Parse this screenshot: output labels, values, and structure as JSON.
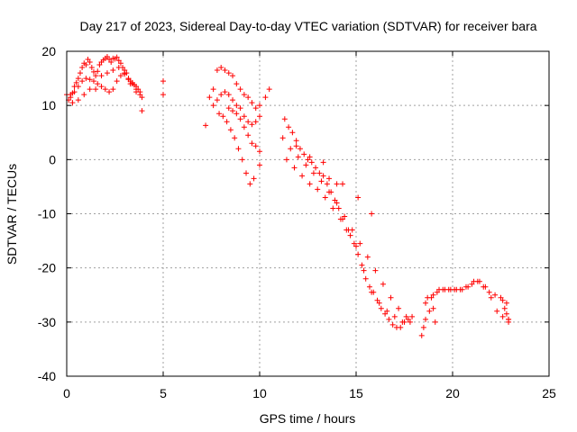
{
  "chart_data": {
    "type": "scatter",
    "title": "Day 217 of 2023, Sidereal Day-to-day VTEC variation (SDTVAR) for receiver bara",
    "xlabel": "GPS time / hours",
    "ylabel": "SDTVAR / TECUs",
    "xlim": [
      0,
      25
    ],
    "ylim": [
      -40,
      20
    ],
    "x_ticks": [
      0,
      5,
      10,
      15,
      20,
      25
    ],
    "y_ticks": [
      -40,
      -30,
      -20,
      -10,
      0,
      10,
      20
    ],
    "x_tick_labels": [
      "0",
      "5",
      "10",
      "15",
      "20",
      "25"
    ],
    "y_tick_labels": [
      "-40",
      "-30",
      "-20",
      "-10",
      "0",
      "10",
      "20"
    ],
    "grid": true,
    "marker": "plus",
    "color": "#ff0000",
    "series": [
      {
        "name": "SDTVAR",
        "x": [
          0.0,
          0.1,
          0.2,
          0.3,
          0.4,
          0.5,
          0.6,
          0.7,
          0.8,
          0.9,
          1.0,
          1.1,
          1.2,
          1.3,
          1.4,
          1.5,
          1.6,
          1.7,
          1.8,
          1.9,
          2.0,
          2.1,
          2.2,
          2.3,
          2.4,
          2.5,
          2.6,
          2.7,
          2.8,
          2.9,
          3.0,
          3.1,
          3.2,
          3.3,
          3.4,
          3.5,
          3.6,
          3.7,
          3.8,
          3.9,
          0.2,
          0.4,
          0.6,
          0.8,
          1.0,
          1.2,
          1.4,
          1.6,
          1.8,
          2.0,
          2.2,
          2.4,
          2.6,
          2.8,
          3.0,
          3.2,
          3.4,
          3.6,
          3.8,
          0.3,
          0.6,
          0.9,
          1.2,
          1.5,
          1.8,
          2.1,
          2.4,
          2.7,
          3.0,
          3.3,
          3.6,
          3.9,
          5.0,
          5.0,
          7.2,
          7.4,
          7.6,
          7.8,
          8.0,
          8.2,
          8.4,
          8.6,
          8.8,
          9.0,
          9.2,
          9.4,
          9.6,
          9.8,
          10.0,
          7.6,
          7.8,
          8.0,
          8.2,
          8.4,
          8.6,
          8.8,
          9.0,
          9.2,
          9.4,
          9.6,
          9.8,
          10.0,
          8.4,
          8.6,
          8.8,
          9.0,
          9.2,
          9.4,
          9.6,
          9.8,
          10.0,
          7.9,
          8.1,
          8.3,
          8.5,
          8.7,
          8.9,
          9.1,
          9.3,
          9.5,
          9.7,
          10.0,
          10.3,
          10.5,
          11.3,
          11.5,
          11.7,
          11.9,
          12.1,
          12.3,
          12.5,
          12.7,
          12.9,
          13.1,
          13.3,
          13.5,
          13.7,
          13.9,
          14.1,
          14.3,
          14.5,
          14.7,
          14.9,
          15.1,
          15.3,
          15.5,
          15.7,
          15.9,
          16.1,
          16.3,
          16.5,
          16.7,
          16.9,
          17.1,
          17.3,
          17.5,
          17.7,
          17.9,
          11.4,
          11.8,
          12.2,
          12.6,
          13.0,
          13.4,
          13.8,
          14.2,
          14.6,
          15.0,
          15.4,
          15.8,
          16.2,
          16.6,
          17.0,
          17.4,
          17.8,
          11.6,
          12.0,
          12.4,
          12.8,
          13.2,
          13.6,
          14.0,
          14.4,
          14.8,
          15.2,
          15.6,
          16.0,
          16.4,
          16.8,
          17.2,
          17.6,
          11.2,
          11.9,
          12.6,
          13.3,
          13.6,
          14.0,
          14.3,
          15.1,
          15.8,
          18.4,
          18.5,
          18.6,
          18.8,
          19.0,
          19.1,
          18.6,
          18.9,
          19.2,
          19.5,
          19.8,
          20.1,
          20.4,
          20.7,
          21.0,
          21.3,
          21.6,
          21.9,
          22.2,
          22.5,
          22.8,
          18.7,
          19.0,
          19.3,
          19.6,
          19.9,
          20.2,
          20.5,
          20.8,
          21.1,
          21.4,
          21.7,
          22.0,
          22.3,
          22.6,
          22.9,
          22.6,
          22.7,
          22.8,
          22.9,
          22.9
        ],
        "y": [
          12.0,
          11.0,
          11.5,
          12.3,
          13.5,
          14.2,
          15.0,
          16.0,
          17.0,
          17.8,
          17.5,
          18.5,
          18.0,
          17.0,
          16.2,
          15.5,
          16.3,
          17.5,
          18.0,
          18.4,
          18.7,
          19.0,
          18.5,
          18.0,
          18.7,
          18.6,
          18.9,
          18.3,
          17.8,
          17.0,
          16.5,
          16.0,
          15.0,
          14.5,
          14.0,
          13.8,
          13.5,
          13.0,
          12.5,
          11.5,
          12.0,
          12.5,
          13.5,
          14.5,
          15.0,
          14.8,
          14.5,
          14.0,
          13.5,
          13.0,
          12.5,
          13.0,
          14.5,
          15.5,
          15.8,
          14.8,
          14.2,
          13.0,
          12.0,
          10.5,
          11.0,
          12.0,
          13.0,
          13.0,
          15.5,
          16.0,
          16.5,
          17.0,
          16.0,
          14.0,
          12.5,
          9.0,
          14.5,
          12.0,
          6.3,
          11.5,
          13.0,
          16.5,
          17.0,
          16.5,
          16.0,
          15.5,
          14.0,
          13.0,
          12.0,
          11.5,
          10.5,
          9.5,
          10.0,
          10.0,
          11.0,
          12.0,
          12.5,
          12.0,
          11.0,
          10.0,
          9.5,
          8.0,
          7.0,
          6.5,
          7.0,
          8.0,
          9.5,
          9.0,
          8.5,
          7.5,
          6.0,
          4.5,
          3.0,
          2.5,
          1.5,
          8.5,
          8.0,
          7.0,
          5.5,
          4.0,
          2.0,
          0.0,
          -2.5,
          -4.5,
          -3.5,
          -1.0,
          11.5,
          13.0,
          7.5,
          6.0,
          5.0,
          3.5,
          2.0,
          1.0,
          0.0,
          -0.5,
          -1.5,
          -2.5,
          -3.0,
          -4.5,
          -6.0,
          -7.5,
          -9.0,
          -11.0,
          -13.0,
          -14.0,
          -15.5,
          -17.5,
          -19.5,
          -22.0,
          -23.5,
          -24.5,
          -26.0,
          -27.5,
          -28.5,
          -29.5,
          -30.5,
          -31.0,
          -31.0,
          -30.0,
          -29.5,
          -29.0,
          0.0,
          -1.5,
          -3.0,
          -4.5,
          -5.5,
          -7.0,
          -9.0,
          -11.0,
          -13.0,
          -16.0,
          -20.5,
          -24.5,
          -26.5,
          -28.0,
          -29.0,
          -30.0,
          -30.0,
          2.0,
          0.5,
          -1.0,
          -2.5,
          -4.0,
          -6.0,
          -8.0,
          -10.5,
          -13.0,
          -15.5,
          -18.0,
          -20.5,
          -23.0,
          -25.5,
          -27.5,
          -29.0,
          4.0,
          2.5,
          0.5,
          -0.5,
          -3.5,
          -4.5,
          -4.5,
          -7.0,
          -10.0,
          -32.5,
          -31.0,
          -29.5,
          -28.0,
          -27.5,
          -30.0,
          -26.5,
          -25.5,
          -24.5,
          -24.0,
          -24.0,
          -24.0,
          -24.0,
          -23.5,
          -23.0,
          -22.5,
          -23.5,
          -24.5,
          -25.0,
          -25.5,
          -26.5,
          -25.5,
          -25.0,
          -24.0,
          -24.0,
          -24.0,
          -24.0,
          -24.0,
          -23.5,
          -22.5,
          -22.5,
          -23.5,
          -25.5,
          -28.0,
          -29.0,
          -29.5,
          -26.0,
          -27.5,
          -28.5,
          -29.5,
          -30.0
        ]
      }
    ]
  }
}
